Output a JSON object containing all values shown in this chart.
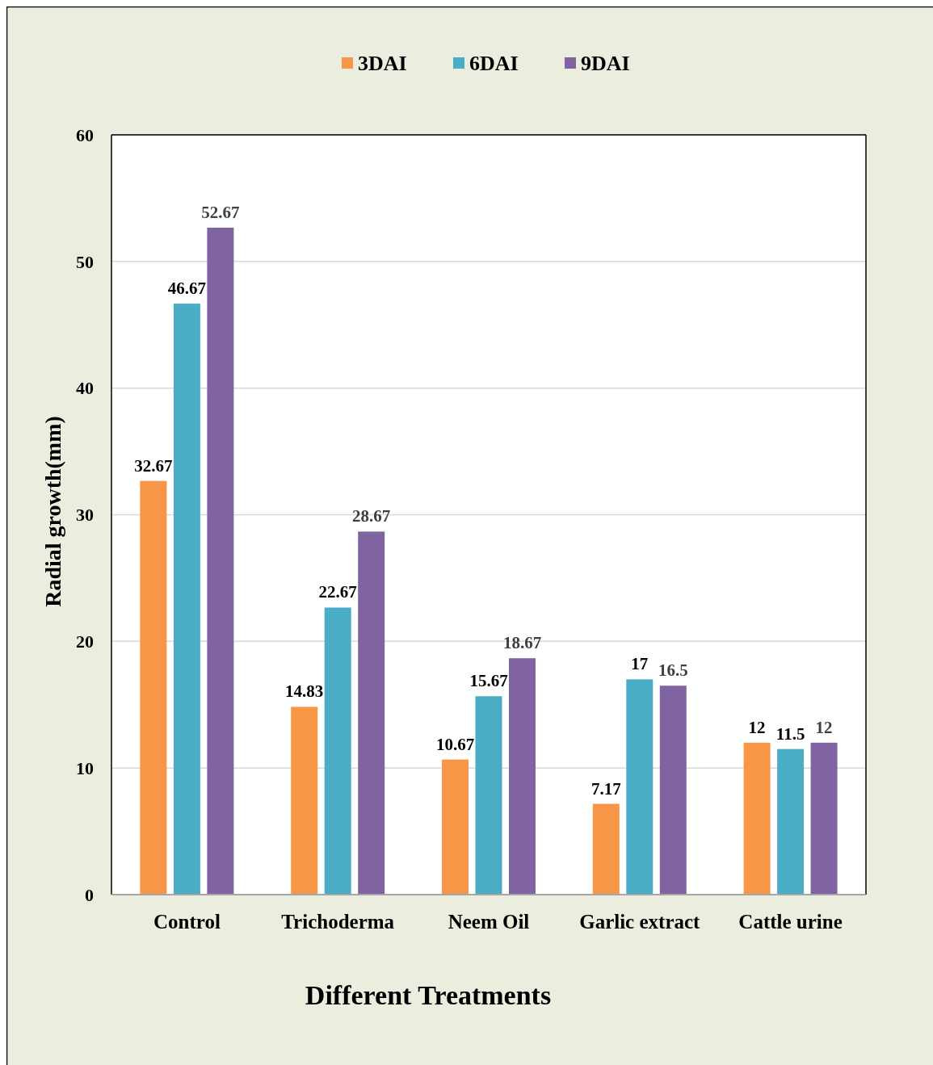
{
  "chart_data": {
    "type": "bar",
    "xlabel": "Different Treatments",
    "ylabel": "Radial growth(mm)",
    "categories": [
      "Control",
      "Trichoderma",
      "Neem Oil",
      "Garlic extract",
      "Cattle urine"
    ],
    "series": [
      {
        "name": "3DAI",
        "color": "#f79646",
        "values": [
          32.67,
          14.83,
          10.67,
          7.17,
          12
        ]
      },
      {
        "name": "6DAI",
        "color": "#4bacc6",
        "values": [
          46.67,
          22.67,
          15.67,
          17,
          11.5
        ]
      },
      {
        "name": "9DAI",
        "color": "#8064a2",
        "values": [
          52.67,
          28.67,
          18.67,
          16.5,
          12
        ]
      }
    ],
    "ylim": [
      0,
      60
    ],
    "yticks": [
      0,
      10,
      20,
      30,
      40,
      50,
      60
    ],
    "grid": "y",
    "legend": "top",
    "data_labels": true
  }
}
